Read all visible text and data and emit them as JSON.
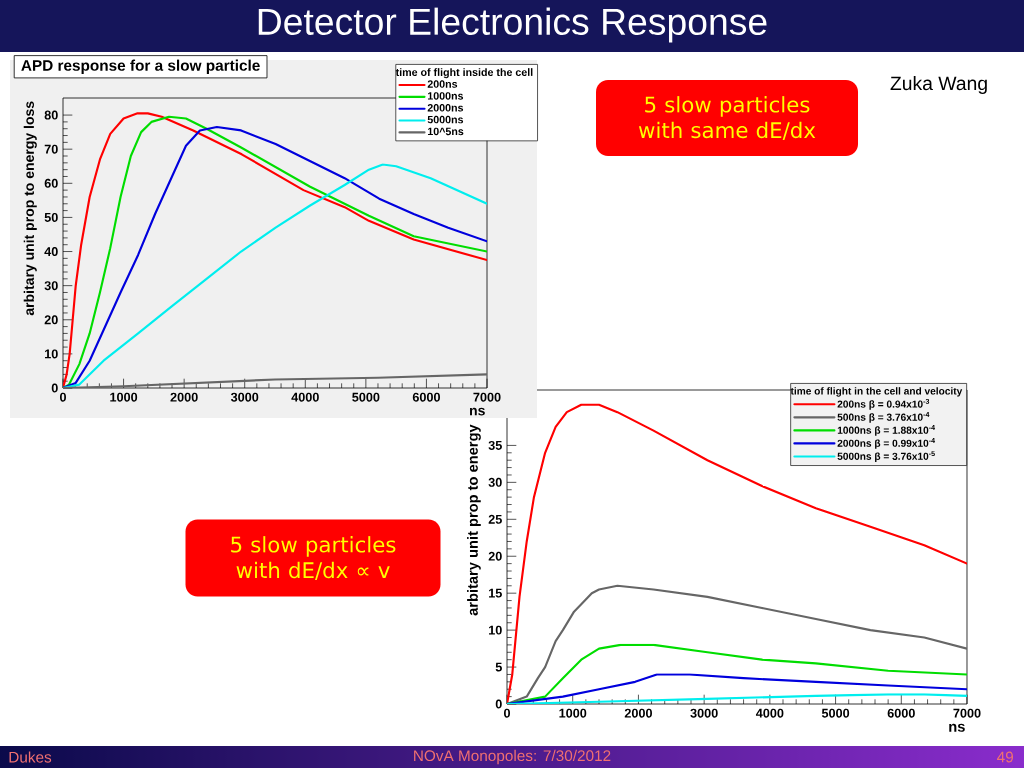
{
  "chart_data": [
    {
      "type": "other",
      "title": "Detector Electronics Response",
      "annotations": [
        "Zuka Wang",
        "Dukes",
        "NOvA Monopoles: 7/30/2012",
        "49"
      ]
    },
    {
      "type": "line",
      "title": "APD response for a slow particle",
      "xlabel": "ns",
      "ylabel": "arbitary unit prop to energy loss",
      "legend_title": "time of flight inside the cell",
      "legend": "top right",
      "xlim": [
        0,
        7000
      ],
      "ylim": [
        0,
        85
      ],
      "xticks": [
        0,
        1000,
        2000,
        3000,
        4000,
        5000,
        6000,
        7000
      ],
      "yticks": [
        0,
        10,
        20,
        30,
        40,
        50,
        60,
        70,
        80
      ],
      "annotations": [
        "5 slow particles with same dE/dx"
      ],
      "series": [
        {
          "name": "200ns",
          "color": "#ff0000",
          "x": [
            0,
            60,
            110,
            160,
            210,
            300,
            440,
            610,
            780,
            1000,
            1230,
            1400,
            1630,
            2150,
            2950,
            3970,
            4650,
            5050,
            5790,
            7000
          ],
          "values": [
            0,
            4,
            10,
            20,
            30,
            42,
            56,
            67,
            74.5,
            79,
            80.5,
            80.5,
            79.5,
            75.5,
            68.5,
            58,
            53,
            49,
            43.5,
            37.5
          ]
        },
        {
          "name": "1000ns",
          "color": "#00dd00",
          "x": [
            0,
            100,
            270,
            440,
            610,
            780,
            950,
            1120,
            1290,
            1460,
            1750,
            2030,
            2370,
            2940,
            4080,
            5050,
            5790,
            7000
          ],
          "values": [
            0,
            1,
            7,
            16,
            28,
            41,
            56,
            68,
            75,
            78,
            79.5,
            79,
            76,
            70.5,
            59,
            50.5,
            44.5,
            40
          ]
        },
        {
          "name": "2000ns",
          "color": "#0000dd",
          "x": [
            0,
            210,
            440,
            670,
            950,
            1240,
            1520,
            1800,
            2030,
            2260,
            2540,
            2940,
            3510,
            4080,
            4650,
            5220,
            5790,
            6360,
            7000
          ],
          "values": [
            0,
            1.5,
            8,
            17,
            28,
            39,
            51,
            62,
            71,
            75.5,
            76.5,
            75.5,
            71.5,
            66.5,
            61.5,
            55.5,
            51,
            47,
            43
          ]
        },
        {
          "name": "5000ns",
          "color": "#00eeee",
          "x": [
            0,
            270,
            670,
            1240,
            1800,
            2370,
            2940,
            3510,
            4080,
            4650,
            5050,
            5280,
            5500,
            6070,
            7000
          ],
          "values": [
            0,
            1,
            8,
            16,
            24,
            32,
            40,
            47,
            53.5,
            59.5,
            64,
            65.5,
            65,
            61.5,
            54
          ]
        },
        {
          "name": "10^5ns",
          "color": "#666666",
          "x": [
            0,
            1000,
            3500,
            5200,
            7000
          ],
          "values": [
            0,
            0.5,
            2.5,
            3,
            4
          ]
        }
      ]
    },
    {
      "type": "line",
      "xlabel": "ns",
      "ylabel": "arbitary unit prop to energy",
      "legend_title": "time of flight in the cell and velocity",
      "legend": "top right",
      "xlim": [
        0,
        7000
      ],
      "ylim": [
        0,
        42.5
      ],
      "xticks": [
        0,
        1000,
        2000,
        3000,
        4000,
        5000,
        6000,
        7000
      ],
      "yticks": [
        0,
        5,
        10,
        15,
        20,
        25,
        30,
        35
      ],
      "annotations": [
        "5 slow particles with dE/dx ∝ v"
      ],
      "series": [
        {
          "name": "200ns β = 0.94x10$^{-3}$",
          "color": "#ff0000",
          "x": [
            0,
            80,
            190,
            300,
            410,
            580,
            740,
            910,
            1130,
            1240,
            1400,
            1680,
            2230,
            3050,
            3880,
            4700,
            5530,
            6350,
            7000
          ],
          "values": [
            0,
            4,
            14.5,
            22,
            28,
            34,
            37.5,
            39.5,
            40.5,
            40.5,
            40.5,
            39.5,
            37,
            33,
            29.5,
            26.5,
            24,
            21.5,
            19
          ]
        },
        {
          "name": "500ns β = 3.76x10$^{-4}$",
          "color": "#666666",
          "x": [
            0,
            300,
            470,
            580,
            740,
            850,
            1020,
            1130,
            1290,
            1400,
            1680,
            2230,
            3050,
            3880,
            4700,
            5530,
            6350,
            7000
          ],
          "values": [
            0,
            1,
            3.5,
            5,
            8.5,
            10,
            12.5,
            13.5,
            15,
            15.5,
            16,
            15.5,
            14.5,
            13,
            11.5,
            10,
            9,
            7.5
          ]
        },
        {
          "name": "1000ns β = 1.88x10$^{-4}$",
          "color": "#00dd00",
          "x": [
            0,
            580,
            850,
            1130,
            1400,
            1730,
            2230,
            3050,
            3880,
            4700,
            5800,
            7000
          ],
          "values": [
            0,
            1,
            3.5,
            6,
            7.5,
            8,
            8,
            7,
            6,
            5.5,
            4.5,
            4
          ]
        },
        {
          "name": "2000ns β = 0.99x10$^{-4}$",
          "color": "#0000dd",
          "x": [
            0,
            850,
            1400,
            1950,
            2280,
            2780,
            3600,
            4700,
            5800,
            7000
          ],
          "values": [
            0,
            1,
            2,
            3,
            4,
            4,
            3.5,
            3,
            2.5,
            2
          ]
        },
        {
          "name": "5000ns β = 3.76x10$^{-5}$",
          "color": "#00eeee",
          "x": [
            0,
            1400,
            3050,
            4700,
            5800,
            6350,
            7000
          ],
          "values": [
            0,
            0.3,
            0.7,
            1.1,
            1.3,
            1.3,
            1.1
          ]
        }
      ]
    }
  ]
}
